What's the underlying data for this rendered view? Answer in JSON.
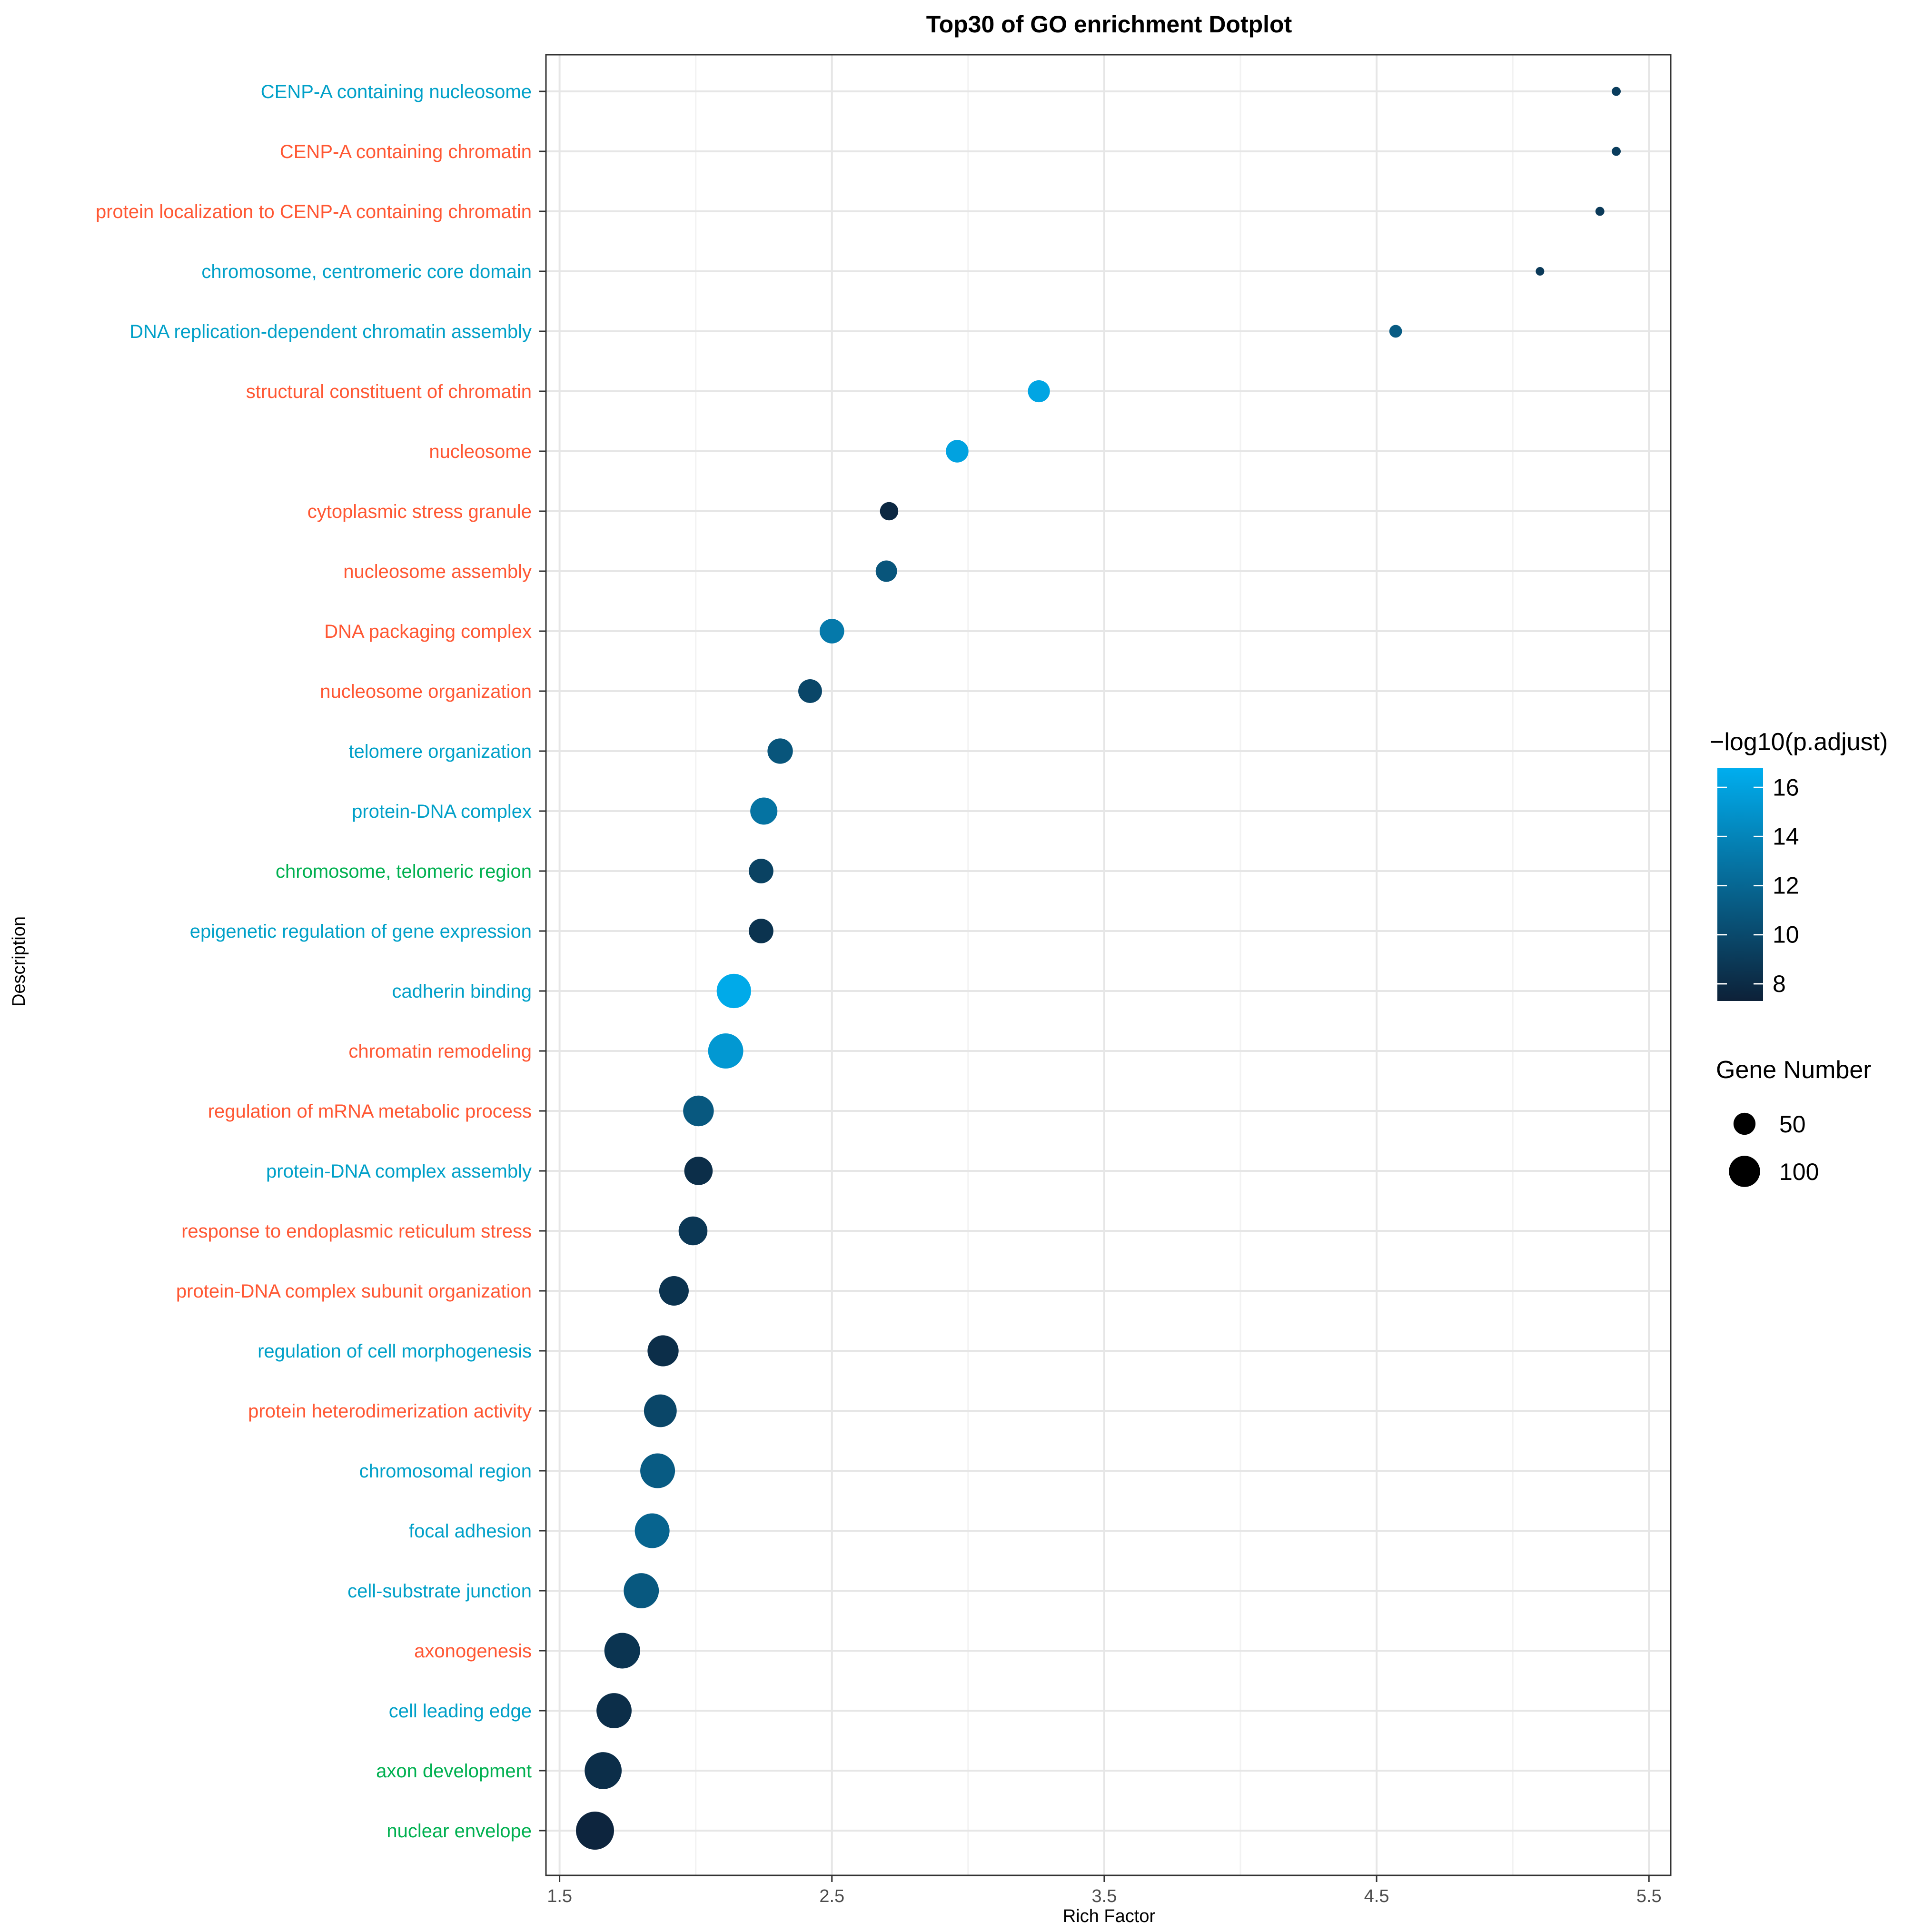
{
  "chart_data": {
    "type": "scatter",
    "title": "Top30 of GO enrichment Dotplot",
    "xlabel": "Rich Factor",
    "ylabel": "Description",
    "xlim": [
      1.45,
      5.58
    ],
    "x_ticks": [
      1.5,
      2.5,
      3.5,
      4.5,
      5.5
    ],
    "x_tick_labels": [
      "1.5",
      "2.5",
      "3.5",
      "4.5",
      "5.5"
    ],
    "grid": true,
    "category_colors": {
      "BP": "#ff5733",
      "CC": "#00a0c8",
      "MF": "#00b050"
    },
    "points": [
      {
        "term": "CENP-A containing nucleosome",
        "rich_factor": 5.38,
        "p_adjust_log": 9.2,
        "gene_number": 6,
        "label_color": "#00a0c8"
      },
      {
        "term": "CENP-A containing chromatin",
        "rich_factor": 5.38,
        "p_adjust_log": 9.2,
        "gene_number": 6,
        "label_color": "#ff5733"
      },
      {
        "term": "protein localization to CENP-A containing chromatin",
        "rich_factor": 5.32,
        "p_adjust_log": 9.0,
        "gene_number": 6,
        "label_color": "#ff5733"
      },
      {
        "term": "chromosome, centromeric core domain",
        "rich_factor": 5.1,
        "p_adjust_log": 9.0,
        "gene_number": 5,
        "label_color": "#00a0c8"
      },
      {
        "term": "DNA replication-dependent chromatin assembly",
        "rich_factor": 4.57,
        "p_adjust_log": 11.2,
        "gene_number": 12,
        "label_color": "#00a0c8"
      },
      {
        "term": "structural constituent of chromatin",
        "rich_factor": 3.26,
        "p_adjust_log": 16.2,
        "gene_number": 36,
        "label_color": "#ff5733"
      },
      {
        "term": "nucleosome",
        "rich_factor": 2.96,
        "p_adjust_log": 16.0,
        "gene_number": 38,
        "label_color": "#ff5733"
      },
      {
        "term": "cytoplasmic stress granule",
        "rich_factor": 2.71,
        "p_adjust_log": 7.8,
        "gene_number": 25,
        "label_color": "#ff5733"
      },
      {
        "term": "nucleosome assembly",
        "rich_factor": 2.7,
        "p_adjust_log": 10.8,
        "gene_number": 34,
        "label_color": "#ff5733"
      },
      {
        "term": "DNA packaging complex",
        "rich_factor": 2.5,
        "p_adjust_log": 13.2,
        "gene_number": 45,
        "label_color": "#ff5733"
      },
      {
        "term": "nucleosome organization",
        "rich_factor": 2.42,
        "p_adjust_log": 9.8,
        "gene_number": 42,
        "label_color": "#ff5733"
      },
      {
        "term": "telomere organization",
        "rich_factor": 2.31,
        "p_adjust_log": 10.8,
        "gene_number": 48,
        "label_color": "#00a0c8"
      },
      {
        "term": "protein-DNA complex",
        "rich_factor": 2.25,
        "p_adjust_log": 12.8,
        "gene_number": 55,
        "label_color": "#00a0c8"
      },
      {
        "term": "chromosome, telomeric region",
        "rich_factor": 2.24,
        "p_adjust_log": 9.5,
        "gene_number": 45,
        "label_color": "#00b050"
      },
      {
        "term": "epigenetic regulation of gene expression",
        "rich_factor": 2.24,
        "p_adjust_log": 8.5,
        "gene_number": 45,
        "label_color": "#00a0c8"
      },
      {
        "term": "cadherin binding",
        "rich_factor": 2.14,
        "p_adjust_log": 16.5,
        "gene_number": 88,
        "label_color": "#00a0c8"
      },
      {
        "term": "chromatin remodeling",
        "rich_factor": 2.11,
        "p_adjust_log": 15.3,
        "gene_number": 92,
        "label_color": "#ff5733"
      },
      {
        "term": "regulation of mRNA metabolic process",
        "rich_factor": 2.01,
        "p_adjust_log": 11.0,
        "gene_number": 70,
        "label_color": "#ff5733"
      },
      {
        "term": "protein-DNA complex assembly",
        "rich_factor": 2.01,
        "p_adjust_log": 8.2,
        "gene_number": 60,
        "label_color": "#00a0c8"
      },
      {
        "term": "response to endoplasmic reticulum stress",
        "rich_factor": 1.99,
        "p_adjust_log": 8.8,
        "gene_number": 62,
        "label_color": "#ff5733"
      },
      {
        "term": "protein-DNA complex subunit organization",
        "rich_factor": 1.92,
        "p_adjust_log": 8.5,
        "gene_number": 65,
        "label_color": "#ff5733"
      },
      {
        "term": "regulation of cell morphogenesis",
        "rich_factor": 1.88,
        "p_adjust_log": 8.2,
        "gene_number": 72,
        "label_color": "#00a0c8"
      },
      {
        "term": "protein heterodimerization activity",
        "rich_factor": 1.87,
        "p_adjust_log": 9.8,
        "gene_number": 80,
        "label_color": "#ff5733"
      },
      {
        "term": "chromosomal region",
        "rich_factor": 1.86,
        "p_adjust_log": 11.2,
        "gene_number": 90,
        "label_color": "#00a0c8"
      },
      {
        "term": "focal adhesion",
        "rich_factor": 1.84,
        "p_adjust_log": 11.8,
        "gene_number": 90,
        "label_color": "#00a0c8"
      },
      {
        "term": "cell-substrate junction",
        "rich_factor": 1.8,
        "p_adjust_log": 11.0,
        "gene_number": 92,
        "label_color": "#00a0c8"
      },
      {
        "term": "axonogenesis",
        "rich_factor": 1.73,
        "p_adjust_log": 8.6,
        "gene_number": 95,
        "label_color": "#ff5733"
      },
      {
        "term": "cell leading edge",
        "rich_factor": 1.7,
        "p_adjust_log": 8.2,
        "gene_number": 92,
        "label_color": "#00a0c8"
      },
      {
        "term": "axon development",
        "rich_factor": 1.66,
        "p_adjust_log": 8.2,
        "gene_number": 102,
        "label_color": "#00b050"
      },
      {
        "term": "nuclear envelope",
        "rich_factor": 1.63,
        "p_adjust_log": 7.6,
        "gene_number": 108,
        "label_color": "#00b050"
      }
    ],
    "color_legend": {
      "title": "−log10(p.adjust)",
      "range": [
        7.3,
        16.8
      ],
      "ticks": [
        8,
        10,
        12,
        14,
        16
      ],
      "tick_labels": [
        "8",
        "10",
        "12",
        "14",
        "16"
      ],
      "color_low": "#0d2138",
      "color_high": "#00aeef"
    },
    "size_legend": {
      "title": "Gene Number",
      "entries": [
        {
          "label": "50",
          "value": 50
        },
        {
          "label": "100",
          "value": 100
        }
      ]
    }
  }
}
